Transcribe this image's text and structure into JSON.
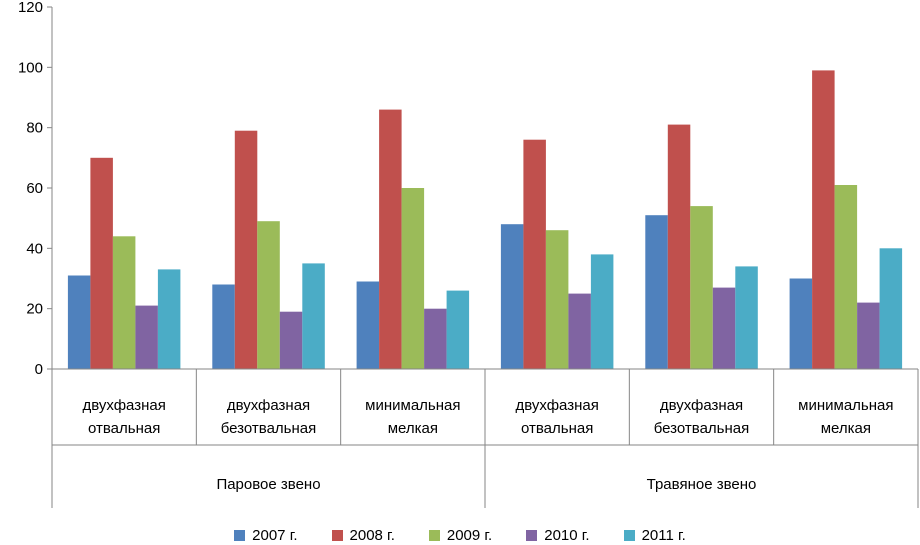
{
  "chart_data": {
    "type": "bar",
    "ylim": [
      0,
      120
    ],
    "yticks": [
      "0",
      "20",
      "40",
      "60",
      "80",
      "100",
      "120"
    ],
    "groups": [
      {
        "label": "Паровое звено",
        "categories": [
          [
            "двухфазная",
            "отвальная"
          ],
          [
            "двухфазная",
            "безотвальная"
          ],
          [
            "минимальная",
            "мелкая"
          ]
        ]
      },
      {
        "label": "Травяное звено",
        "categories": [
          [
            "двухфазная",
            "отвальная"
          ],
          [
            "двухфазная",
            "безотвальная"
          ],
          [
            "минимальная",
            "мелкая"
          ]
        ]
      }
    ],
    "series": [
      {
        "name": "2007 г.",
        "color": "#4F81BD",
        "values": [
          31,
          28,
          29,
          48,
          51,
          30
        ]
      },
      {
        "name": "2008 г.",
        "color": "#C0504D",
        "values": [
          70,
          79,
          86,
          76,
          81,
          99
        ]
      },
      {
        "name": "2009 г.",
        "color": "#9BBB59",
        "values": [
          44,
          49,
          60,
          46,
          54,
          61
        ]
      },
      {
        "name": "2010 г.",
        "color": "#8064A2",
        "values": [
          21,
          19,
          20,
          25,
          27,
          22
        ]
      },
      {
        "name": "2011 г.",
        "color": "#4BACC6",
        "values": [
          33,
          35,
          26,
          38,
          34,
          40
        ]
      }
    ],
    "legend_position": "bottom",
    "grid": false
  }
}
